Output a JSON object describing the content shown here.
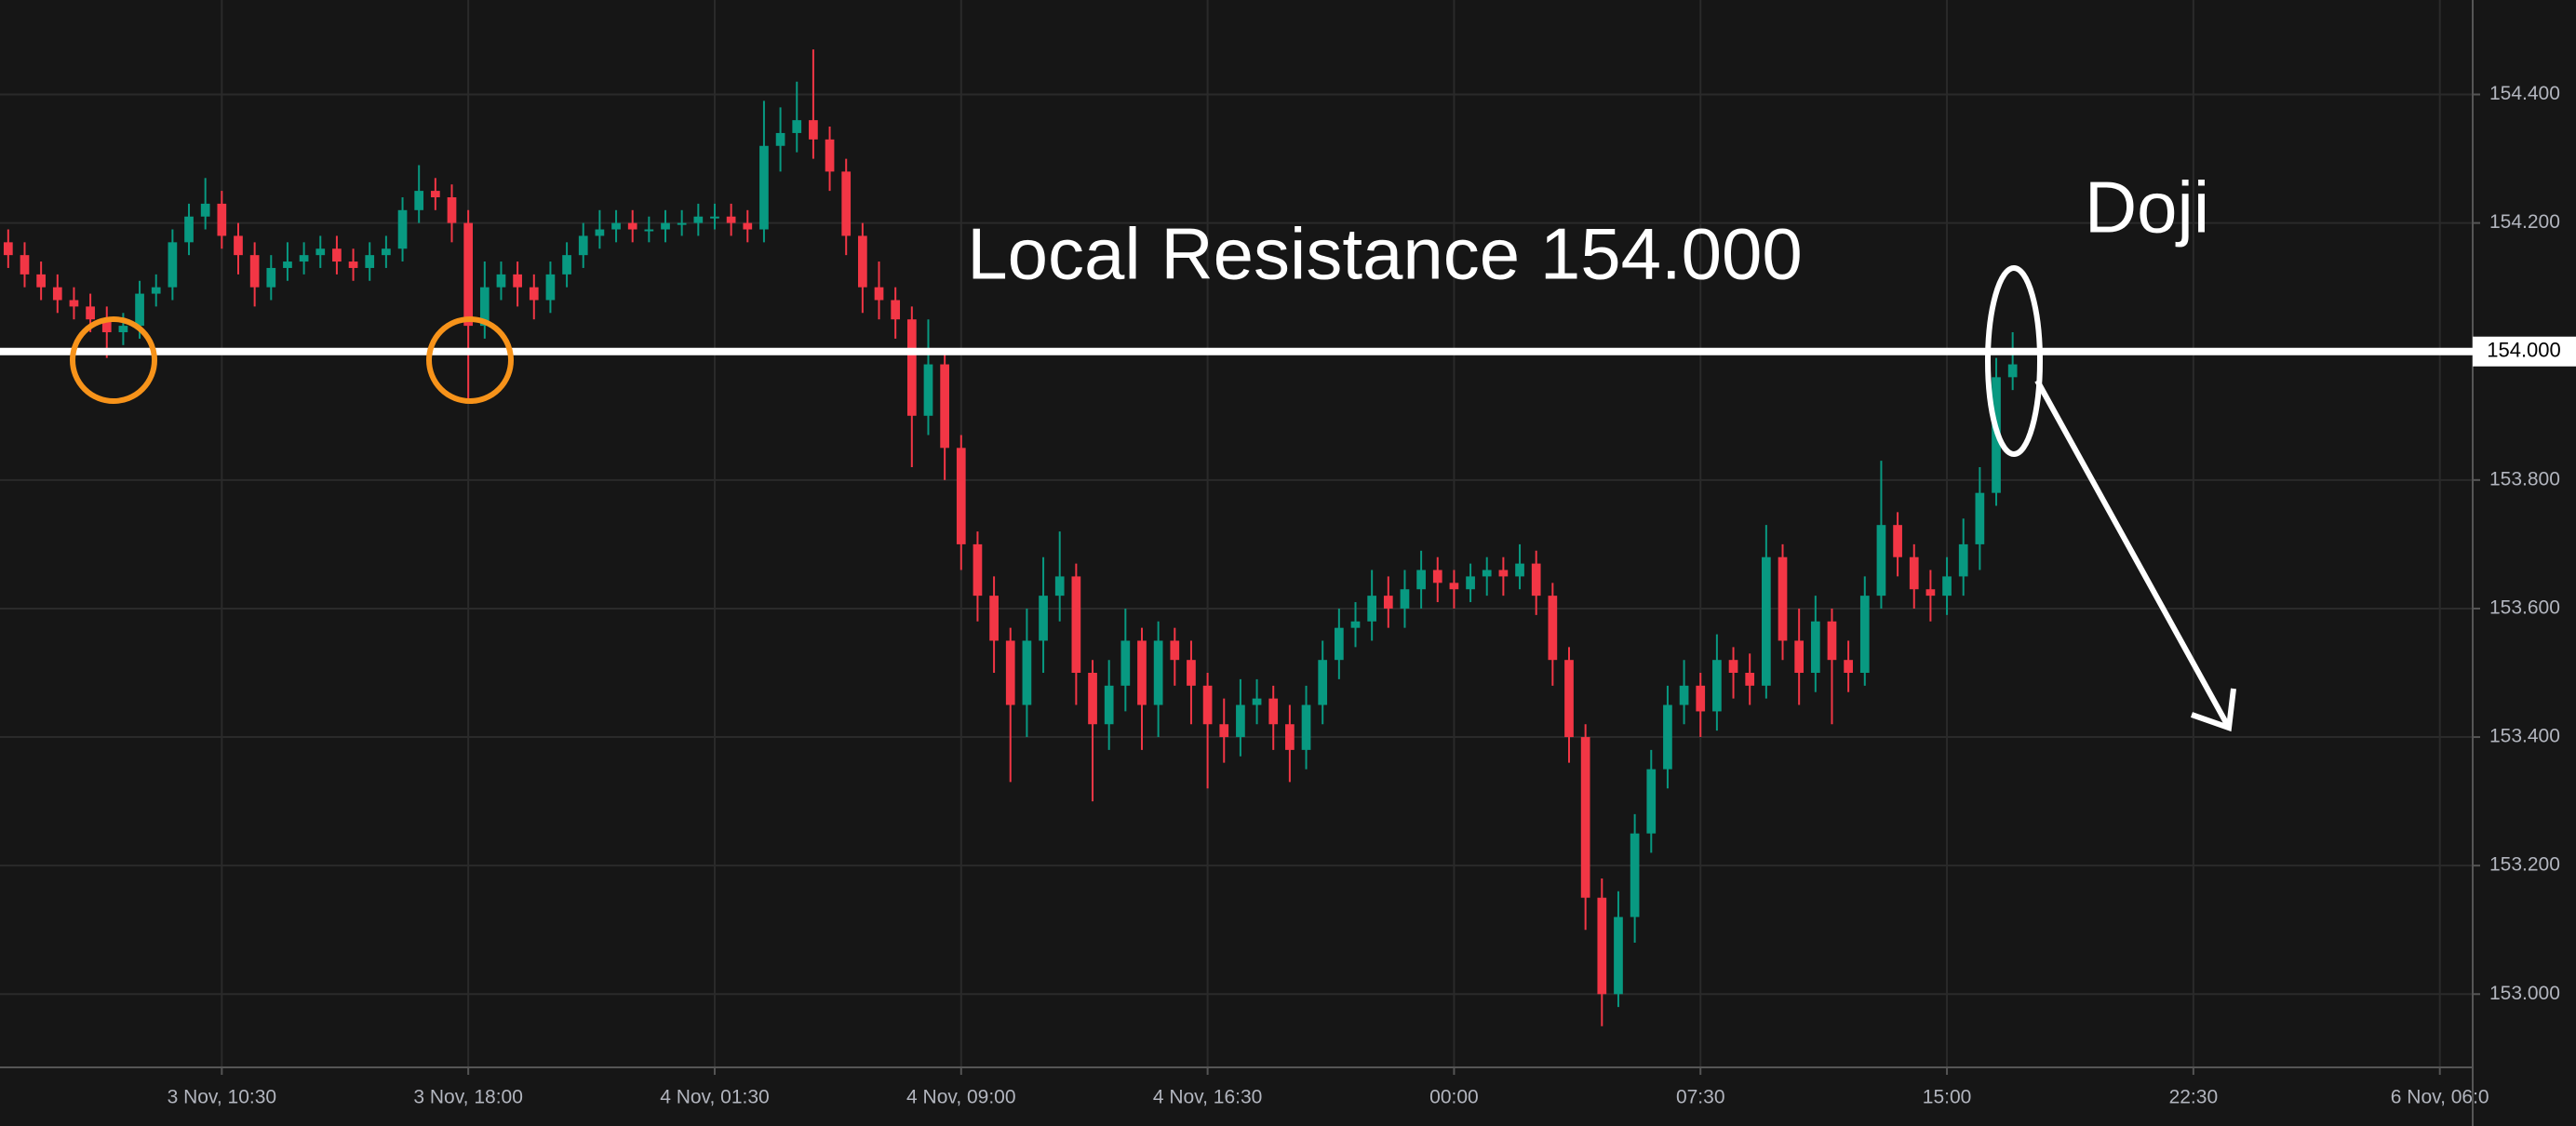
{
  "chart_data": {
    "type": "candlestick",
    "up_color": "#089981",
    "down_color": "#f23645",
    "grid": true,
    "xlim": [
      -0.5,
      150
    ],
    "ylim": [
      152.886,
      154.547
    ],
    "xticks": [
      {
        "value": 13,
        "label": "3 Nov, 10:30"
      },
      {
        "value": 28,
        "label": "3 Nov, 18:00"
      },
      {
        "value": 43,
        "label": "4 Nov, 01:30"
      },
      {
        "value": 58,
        "label": "4 Nov, 09:00"
      },
      {
        "value": 73,
        "label": "4 Nov, 16:30"
      },
      {
        "value": 88,
        "label": "00:00"
      },
      {
        "value": 103,
        "label": "07:30"
      },
      {
        "value": 118,
        "label": "15:00"
      },
      {
        "value": 133,
        "label": "22:30"
      },
      {
        "value": 148,
        "label": "6 Nov, 06:0"
      }
    ],
    "yticks": [
      {
        "value": 153.0,
        "label": "153.000"
      },
      {
        "value": 153.2,
        "label": "153.200"
      },
      {
        "value": 153.4,
        "label": "153.400"
      },
      {
        "value": 153.6,
        "label": "153.600"
      },
      {
        "value": 153.8,
        "label": "153.800"
      },
      {
        "value": 154.2,
        "label": "154.200"
      },
      {
        "value": 154.4,
        "label": "154.400"
      }
    ],
    "resistance_line": {
      "value": 154.0,
      "label": "154.000"
    },
    "annotations": [
      "Local Resistance 154.000",
      "Doji"
    ],
    "open": [
      154.17,
      154.15,
      154.12,
      154.1,
      154.08,
      154.07,
      154.05,
      154.03,
      154.04,
      154.09,
      154.1,
      154.17,
      154.21,
      154.23,
      154.18,
      154.15,
      154.1,
      154.13,
      154.14,
      154.15,
      154.16,
      154.14,
      154.13,
      154.15,
      154.16,
      154.22,
      154.25,
      154.24,
      154.2,
      154.04,
      154.1,
      154.12,
      154.1,
      154.08,
      154.12,
      154.15,
      154.18,
      154.19,
      154.2,
      154.19,
      154.19,
      154.2,
      154.2,
      154.21,
      154.21,
      154.2,
      154.19,
      154.32,
      154.34,
      154.36,
      154.33,
      154.28,
      154.18,
      154.1,
      154.08,
      154.05,
      153.9,
      153.98,
      153.85,
      153.7,
      153.62,
      153.55,
      153.45,
      153.55,
      153.62,
      153.65,
      153.5,
      153.42,
      153.48,
      153.55,
      153.45,
      153.55,
      153.52,
      153.48,
      153.42,
      153.4,
      153.45,
      153.46,
      153.42,
      153.38,
      153.45,
      153.52,
      153.57,
      153.58,
      153.62,
      153.6,
      153.63,
      153.66,
      153.64,
      153.63,
      153.65,
      153.66,
      153.65,
      153.67,
      153.62,
      153.52,
      153.4,
      153.15,
      153.0,
      153.12,
      153.25,
      153.35,
      153.45,
      153.48,
      153.44,
      153.52,
      153.5,
      153.48,
      153.68,
      153.55,
      153.5,
      153.58,
      153.52,
      153.5,
      153.62,
      153.73,
      153.68,
      153.63,
      153.62,
      153.65,
      153.7,
      153.78,
      153.96
    ],
    "high": [
      154.19,
      154.17,
      154.14,
      154.12,
      154.1,
      154.09,
      154.07,
      154.06,
      154.11,
      154.12,
      154.19,
      154.23,
      154.27,
      154.25,
      154.2,
      154.17,
      154.15,
      154.17,
      154.17,
      154.18,
      154.18,
      154.16,
      154.17,
      154.18,
      154.24,
      154.29,
      154.27,
      154.26,
      154.22,
      154.14,
      154.14,
      154.14,
      154.12,
      154.14,
      154.17,
      154.2,
      154.22,
      154.22,
      154.22,
      154.21,
      154.22,
      154.22,
      154.23,
      154.23,
      154.23,
      154.22,
      154.39,
      154.38,
      154.42,
      154.47,
      154.35,
      154.3,
      154.2,
      154.14,
      154.1,
      154.07,
      154.05,
      154.0,
      153.87,
      153.72,
      153.65,
      153.57,
      153.6,
      153.68,
      153.72,
      153.67,
      153.52,
      153.52,
      153.6,
      153.57,
      153.58,
      153.57,
      153.55,
      153.5,
      153.46,
      153.49,
      153.49,
      153.48,
      153.45,
      153.48,
      153.55,
      153.6,
      153.61,
      153.66,
      153.65,
      153.66,
      153.69,
      153.68,
      153.66,
      153.67,
      153.68,
      153.68,
      153.7,
      153.69,
      153.64,
      153.54,
      153.42,
      153.18,
      153.16,
      153.28,
      153.38,
      153.48,
      153.52,
      153.5,
      153.56,
      153.54,
      153.53,
      153.73,
      153.7,
      153.6,
      153.62,
      153.6,
      153.55,
      153.65,
      153.83,
      153.75,
      153.7,
      153.66,
      153.68,
      153.74,
      153.82,
      153.99,
      154.03
    ],
    "low": [
      154.13,
      154.1,
      154.08,
      154.06,
      154.05,
      154.03,
      153.99,
      154.01,
      154.02,
      154.07,
      154.08,
      154.15,
      154.19,
      154.16,
      154.12,
      154.07,
      154.08,
      154.11,
      154.12,
      154.13,
      154.12,
      154.11,
      154.11,
      154.13,
      154.14,
      154.2,
      154.22,
      154.17,
      153.92,
      154.02,
      154.08,
      154.07,
      154.05,
      154.06,
      154.1,
      154.13,
      154.16,
      154.17,
      154.17,
      154.17,
      154.17,
      154.18,
      154.18,
      154.19,
      154.18,
      154.17,
      154.17,
      154.28,
      154.31,
      154.3,
      154.25,
      154.15,
      154.06,
      154.05,
      154.02,
      153.82,
      153.87,
      153.8,
      153.66,
      153.58,
      153.5,
      153.33,
      153.4,
      153.5,
      153.58,
      153.45,
      153.3,
      153.38,
      153.44,
      153.38,
      153.4,
      153.48,
      153.42,
      153.32,
      153.36,
      153.37,
      153.42,
      153.38,
      153.33,
      153.35,
      153.42,
      153.49,
      153.54,
      153.55,
      153.57,
      153.57,
      153.6,
      153.61,
      153.6,
      153.61,
      153.62,
      153.62,
      153.63,
      153.59,
      153.48,
      153.36,
      153.1,
      152.95,
      152.98,
      153.08,
      153.22,
      153.32,
      153.42,
      153.4,
      153.41,
      153.46,
      153.45,
      153.46,
      153.52,
      153.45,
      153.47,
      153.42,
      153.47,
      153.48,
      153.6,
      153.65,
      153.6,
      153.58,
      153.59,
      153.62,
      153.66,
      153.76,
      153.94
    ],
    "close": [
      154.15,
      154.12,
      154.1,
      154.08,
      154.07,
      154.05,
      154.03,
      154.04,
      154.09,
      154.1,
      154.17,
      154.21,
      154.23,
      154.18,
      154.15,
      154.1,
      154.13,
      154.14,
      154.15,
      154.16,
      154.14,
      154.13,
      154.15,
      154.16,
      154.22,
      154.25,
      154.24,
      154.2,
      154.04,
      154.1,
      154.12,
      154.1,
      154.08,
      154.12,
      154.15,
      154.18,
      154.19,
      154.2,
      154.19,
      154.19,
      154.2,
      154.2,
      154.21,
      154.21,
      154.2,
      154.19,
      154.32,
      154.34,
      154.36,
      154.33,
      154.28,
      154.18,
      154.1,
      154.08,
      154.05,
      153.9,
      153.98,
      153.85,
      153.7,
      153.62,
      153.55,
      153.45,
      153.55,
      153.62,
      153.65,
      153.5,
      153.42,
      153.48,
      153.55,
      153.45,
      153.55,
      153.52,
      153.48,
      153.42,
      153.4,
      153.45,
      153.46,
      153.42,
      153.38,
      153.45,
      153.52,
      153.57,
      153.58,
      153.62,
      153.6,
      153.63,
      153.66,
      153.64,
      153.63,
      153.65,
      153.66,
      153.65,
      153.67,
      153.62,
      153.52,
      153.4,
      153.15,
      153.0,
      153.12,
      153.25,
      153.35,
      153.45,
      153.48,
      153.44,
      153.52,
      153.5,
      153.48,
      153.68,
      153.55,
      153.5,
      153.58,
      153.52,
      153.5,
      153.62,
      153.73,
      153.68,
      153.63,
      153.62,
      153.65,
      153.7,
      153.78,
      153.96,
      153.98
    ]
  }
}
